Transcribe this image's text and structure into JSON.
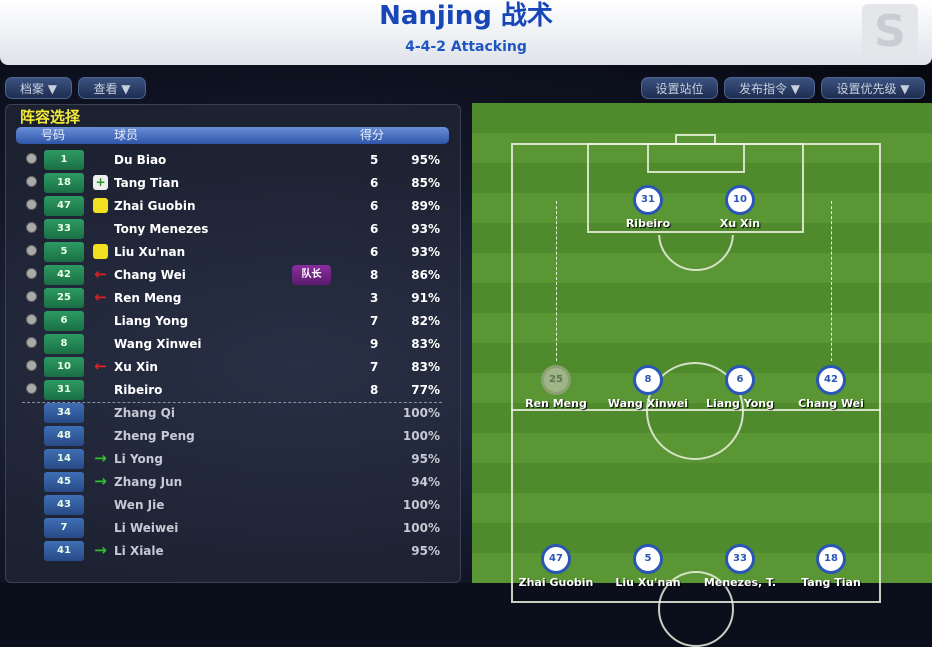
{
  "header": {
    "title": "Nanjing 战术",
    "subtitle": "4-4-2 Attacking"
  },
  "toolbar": {
    "left": [
      "档案 ▼",
      "查看 ▼"
    ],
    "right": [
      "设置站位",
      "发布指令 ▼",
      "设置优先级 ▼"
    ]
  },
  "panel": {
    "title": "阵容选择",
    "columns": [
      "号码",
      "球员",
      "得分"
    ],
    "captain_label": "队长"
  },
  "players": [
    {
      "num": "1",
      "name": "Du Biao",
      "score": "5",
      "pct": "95%",
      "icon": "",
      "starter": true
    },
    {
      "num": "18",
      "name": "Tang Tian",
      "score": "6",
      "pct": "85%",
      "icon": "plus",
      "starter": true
    },
    {
      "num": "47",
      "name": "Zhai Guobin",
      "score": "6",
      "pct": "89%",
      "icon": "yellow-card",
      "starter": true
    },
    {
      "num": "33",
      "name": "Tony Menezes",
      "score": "6",
      "pct": "93%",
      "icon": "",
      "starter": true
    },
    {
      "num": "5",
      "name": "Liu Xu'nan",
      "score": "6",
      "pct": "93%",
      "icon": "yellow-card",
      "starter": true
    },
    {
      "num": "42",
      "name": "Chang Wei",
      "score": "8",
      "pct": "86%",
      "icon": "red-arrow",
      "starter": true,
      "captain": true
    },
    {
      "num": "25",
      "name": "Ren Meng",
      "score": "3",
      "pct": "91%",
      "icon": "red-arrow",
      "starter": true
    },
    {
      "num": "6",
      "name": "Liang Yong",
      "score": "7",
      "pct": "82%",
      "icon": "",
      "starter": true
    },
    {
      "num": "8",
      "name": "Wang Xinwei",
      "score": "9",
      "pct": "83%",
      "icon": "",
      "starter": true
    },
    {
      "num": "10",
      "name": "Xu Xin",
      "score": "7",
      "pct": "83%",
      "icon": "red-arrow",
      "starter": true
    },
    {
      "num": "31",
      "name": "Ribeiro",
      "score": "8",
      "pct": "77%",
      "icon": "",
      "starter": true
    },
    {
      "num": "34",
      "name": "Zhang Qi",
      "score": "",
      "pct": "100%",
      "icon": "",
      "starter": false
    },
    {
      "num": "48",
      "name": "Zheng Peng",
      "score": "",
      "pct": "100%",
      "icon": "",
      "starter": false
    },
    {
      "num": "14",
      "name": "Li Yong",
      "score": "",
      "pct": "95%",
      "icon": "green-arrow",
      "starter": false
    },
    {
      "num": "45",
      "name": "Zhang Jun",
      "score": "",
      "pct": "94%",
      "icon": "green-arrow",
      "starter": false
    },
    {
      "num": "43",
      "name": "Wen Jie",
      "score": "",
      "pct": "100%",
      "icon": "",
      "starter": false
    },
    {
      "num": "7",
      "name": "Li Weiwei",
      "score": "",
      "pct": "100%",
      "icon": "",
      "starter": false
    },
    {
      "num": "41",
      "name": "Li Xiale",
      "score": "",
      "pct": "95%",
      "icon": "green-arrow",
      "starter": false
    }
  ],
  "pitch": [
    {
      "num": "31",
      "label": "Ribeiro",
      "line": "attack",
      "slot": 1
    },
    {
      "num": "10",
      "label": "Xu Xin",
      "line": "attack",
      "slot": 2
    },
    {
      "num": "25",
      "label": "Ren Meng",
      "line": "midfield",
      "slot": 0,
      "faded": true
    },
    {
      "num": "8",
      "label": "Wang Xinwei",
      "line": "midfield",
      "slot": 1
    },
    {
      "num": "6",
      "label": "Liang Yong",
      "line": "midfield",
      "slot": 2
    },
    {
      "num": "42",
      "label": "Chang Wei",
      "line": "midfield",
      "slot": 3
    },
    {
      "num": "47",
      "label": "Zhai Guobin",
      "line": "defence",
      "slot": 0
    },
    {
      "num": "5",
      "label": "Liu Xu'nan",
      "line": "defence",
      "slot": 1
    },
    {
      "num": "33",
      "label": "Menezes, T.",
      "line": "defence",
      "slot": 2
    },
    {
      "num": "18",
      "label": "Tang Tian",
      "line": "defence",
      "slot": 3
    }
  ]
}
